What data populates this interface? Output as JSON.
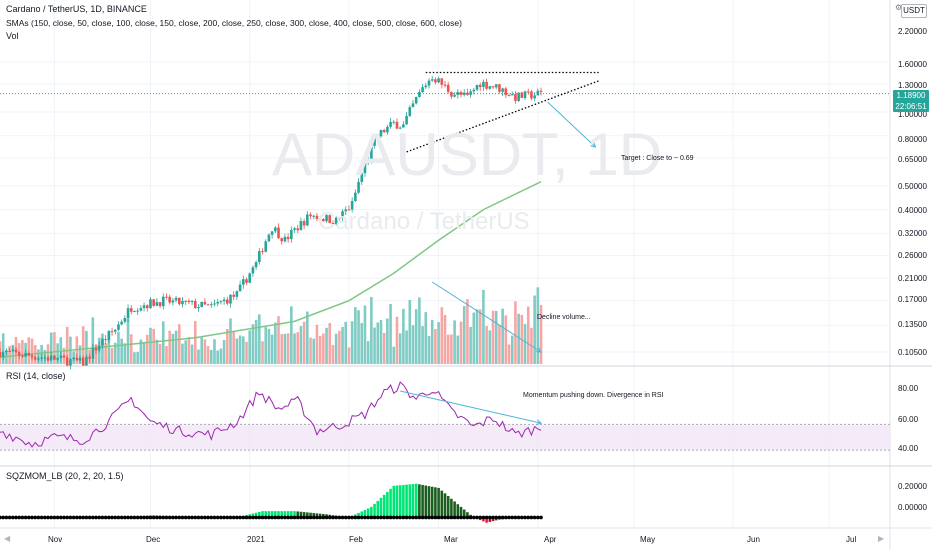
{
  "header": {
    "title": "Cardano / TetherUS, 1D, BINANCE",
    "sma_label": "SMAs (150, close, 50, close, 100, close, 150, close, 200, close, 250, close, 300, close, 400, close, 500, close, 600, close)",
    "vol_label": "Vol"
  },
  "watermark": {
    "symbol": "ADAUSDT, 1D",
    "name": "Cardano / TetherUS"
  },
  "currency_button": "USDT",
  "last_price": {
    "value": "1.18900",
    "countdown": "22:06:51",
    "color": "#26a69a"
  },
  "colors": {
    "up": "#26a69a",
    "down": "#ef5350",
    "sma": "#81c784",
    "rsi": "#9c27b0",
    "arrow": "#4fb4d8"
  },
  "price_axis": [
    "2.20000",
    "1.60000",
    "1.30000",
    "1.00000",
    "0.80000",
    "0.65000",
    "0.50000",
    "0.40000",
    "0.32000",
    "0.26000",
    "0.21000",
    "0.17000",
    "0.13500",
    "0.10500"
  ],
  "rsi_axis": [
    "80.00",
    "60.00",
    "40.00"
  ],
  "sqz_axis": [
    "0.20000",
    "0.00000"
  ],
  "time_axis": [
    "Nov",
    "Dec",
    "2021",
    "Feb",
    "Mar",
    "Apr",
    "May",
    "Jun",
    "Jul"
  ],
  "rsi_pane": {
    "label": "RSI (14, close)"
  },
  "sqz_pane": {
    "label": "SQZMOM_LB (20, 2, 20, 1.5)"
  },
  "annotations": {
    "target": "Target : Close to ~ 0.69",
    "volume": "Decline volume...",
    "momentum": "Momentum pushing down. Divergence in RSI"
  },
  "chart_data": {
    "type": "candlestick",
    "symbol": "ADAUSDT",
    "interval": "1D",
    "exchange": "BINANCE",
    "x_range": [
      "2020-10-15",
      "2021-07-20"
    ],
    "price_scale": "log",
    "rsi_range": [
      30,
      100
    ],
    "rsi_band": [
      40,
      60
    ],
    "sqz_range": [
      -0.1,
      0.45
    ],
    "anchors": [
      {
        "date": "2020-10-15",
        "close": 0.105
      },
      {
        "date": "2020-11-10",
        "close": 0.095
      },
      {
        "date": "2020-11-20",
        "close": 0.13
      },
      {
        "date": "2020-11-25",
        "close": 0.16
      },
      {
        "date": "2020-12-05",
        "close": 0.17
      },
      {
        "date": "2020-12-20",
        "close": 0.16
      },
      {
        "date": "2020-12-28",
        "close": 0.18
      },
      {
        "date": "2021-01-03",
        "close": 0.24
      },
      {
        "date": "2021-01-08",
        "close": 0.34
      },
      {
        "date": "2021-01-12",
        "close": 0.3
      },
      {
        "date": "2021-01-20",
        "close": 0.38
      },
      {
        "date": "2021-01-28",
        "close": 0.36
      },
      {
        "date": "2021-02-02",
        "close": 0.42
      },
      {
        "date": "2021-02-10",
        "close": 0.8
      },
      {
        "date": "2021-02-15",
        "close": 0.9
      },
      {
        "date": "2021-02-18",
        "close": 0.88
      },
      {
        "date": "2021-02-24",
        "close": 1.25
      },
      {
        "date": "2021-02-27",
        "close": 1.4
      },
      {
        "date": "2021-03-05",
        "close": 1.2
      },
      {
        "date": "2021-03-10",
        "close": 1.15
      },
      {
        "date": "2021-03-14",
        "close": 1.32
      },
      {
        "date": "2021-03-20",
        "close": 1.25
      },
      {
        "date": "2021-03-25",
        "close": 1.15
      },
      {
        "date": "2021-04-02",
        "close": 1.189
      }
    ],
    "sma": [
      {
        "date": "2020-10-15",
        "value": 0.1
      },
      {
        "date": "2020-12-15",
        "value": 0.12
      },
      {
        "date": "2021-01-15",
        "value": 0.14
      },
      {
        "date": "2021-02-01",
        "value": 0.17
      },
      {
        "date": "2021-02-15",
        "value": 0.22
      },
      {
        "date": "2021-03-01",
        "value": 0.3
      },
      {
        "date": "2021-03-15",
        "value": 0.4
      },
      {
        "date": "2021-04-02",
        "value": 0.52
      }
    ],
    "drawings": {
      "resistance": [
        [
          "2021-02-25",
          1.45
        ],
        [
          "2021-04-20",
          1.45
        ]
      ],
      "support": [
        [
          "2021-02-18",
          0.68
        ],
        [
          "2021-04-20",
          1.34
        ]
      ],
      "target_arrow": [
        [
          "2021-04-04",
          1.1
        ],
        [
          "2021-04-19",
          0.72
        ]
      ],
      "volume_arrow_start": "2021-02-27",
      "volume_arrow_end": "2021-04-02",
      "rsi_arrow": [
        [
          "2021-02-17",
          86
        ],
        [
          "2021-04-02",
          61
        ]
      ]
    },
    "rsi": [
      {
        "date": "2020-10-15",
        "value": 55
      },
      {
        "date": "2020-10-25",
        "value": 45
      },
      {
        "date": "2020-11-01",
        "value": 50
      },
      {
        "date": "2020-11-10",
        "value": 48
      },
      {
        "date": "2020-11-18",
        "value": 62
      },
      {
        "date": "2020-11-25",
        "value": 80
      },
      {
        "date": "2020-12-01",
        "value": 62
      },
      {
        "date": "2020-12-10",
        "value": 55
      },
      {
        "date": "2020-12-20",
        "value": 52
      },
      {
        "date": "2020-12-28",
        "value": 62
      },
      {
        "date": "2021-01-04",
        "value": 85
      },
      {
        "date": "2021-01-10",
        "value": 72
      },
      {
        "date": "2021-01-16",
        "value": 78
      },
      {
        "date": "2021-01-22",
        "value": 55
      },
      {
        "date": "2021-01-30",
        "value": 60
      },
      {
        "date": "2021-02-06",
        "value": 68
      },
      {
        "date": "2021-02-12",
        "value": 85
      },
      {
        "date": "2021-02-17",
        "value": 90
      },
      {
        "date": "2021-02-22",
        "value": 80
      },
      {
        "date": "2021-02-27",
        "value": 88
      },
      {
        "date": "2021-03-05",
        "value": 70
      },
      {
        "date": "2021-03-12",
        "value": 58
      },
      {
        "date": "2021-03-18",
        "value": 65
      },
      {
        "date": "2021-03-25",
        "value": 52
      },
      {
        "date": "2021-04-02",
        "value": 58
      }
    ],
    "sqz": [
      {
        "date": "2020-10-15",
        "value": 0
      },
      {
        "date": "2020-11-20",
        "value": 0
      },
      {
        "date": "2020-12-01",
        "value": 0.02
      },
      {
        "date": "2020-12-10",
        "value": 0.01
      },
      {
        "date": "2020-12-28",
        "value": 0
      },
      {
        "date": "2021-01-05",
        "value": 0.06
      },
      {
        "date": "2021-01-15",
        "value": 0.06
      },
      {
        "date": "2021-01-25",
        "value": 0.03
      },
      {
        "date": "2021-02-01",
        "value": 0
      },
      {
        "date": "2021-02-08",
        "value": 0.1
      },
      {
        "date": "2021-02-15",
        "value": 0.3
      },
      {
        "date": "2021-02-22",
        "value": 0.32
      },
      {
        "date": "2021-03-01",
        "value": 0.28
      },
      {
        "date": "2021-03-08",
        "value": 0.1
      },
      {
        "date": "2021-03-12",
        "value": 0
      },
      {
        "date": "2021-03-16",
        "value": -0.05
      },
      {
        "date": "2021-03-20",
        "value": -0.02
      },
      {
        "date": "2021-04-02",
        "value": 0.01
      }
    ]
  }
}
